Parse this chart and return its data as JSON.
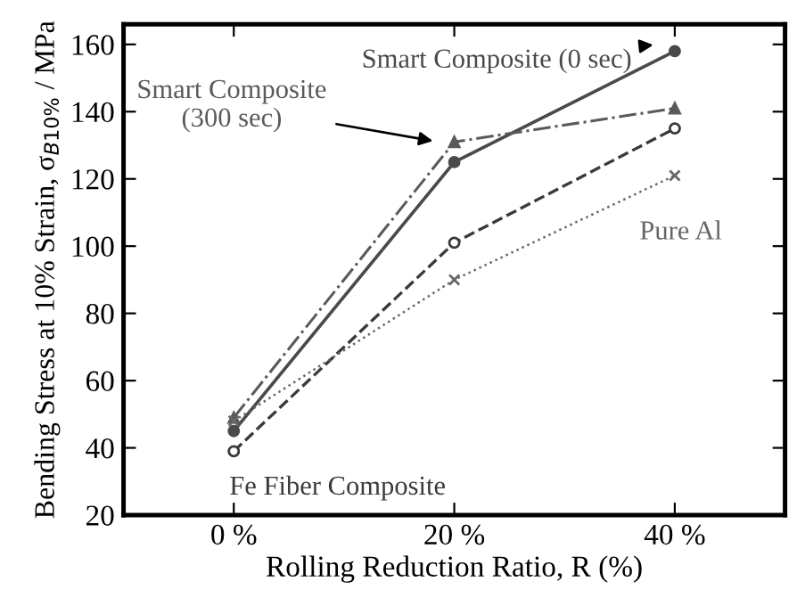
{
  "chart_data": {
    "type": "line",
    "xlabel": "Rolling Reduction Ratio, R (%)",
    "ylabel": "Bending Stress at 10% Strain, σ$_{B10%}$ / MPa",
    "x": [
      0,
      20,
      40
    ],
    "series": [
      {
        "name": "Smart Composite (0 sec)",
        "color": "#4a4a4a",
        "values": [
          45,
          125,
          158
        ],
        "marker": "circle",
        "line_style": "solid"
      },
      {
        "name": "Smart Composite\n(300 sec)",
        "color": "#5a5a5a",
        "values": [
          49,
          131,
          141
        ],
        "marker": "triangle",
        "line_style": "dashdot"
      },
      {
        "name": "Fe Fiber Composite",
        "color": "#3a3a3a",
        "values": [
          39,
          101,
          135
        ],
        "marker": "open circle",
        "line_style": "dashed"
      },
      {
        "name": "Pure Al",
        "color": "#666666",
        "values": [
          48,
          90,
          121
        ],
        "marker": "cross",
        "line_style": "dotted"
      }
    ],
    "xlim": [
      -10,
      50
    ],
    "xticks": [
      {
        "value": 0,
        "label": "0 %"
      },
      {
        "value": 20,
        "label": "20 %"
      },
      {
        "value": 40,
        "label": "40 %"
      }
    ],
    "ylim": [
      20,
      166
    ],
    "yticks": [
      20,
      40,
      60,
      80,
      100,
      120,
      140,
      160
    ],
    "grid": false,
    "legend": false
  }
}
